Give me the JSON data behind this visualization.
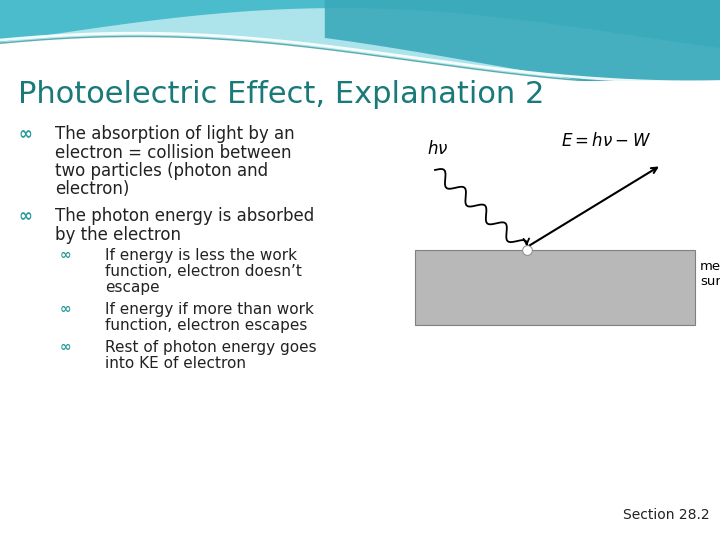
{
  "title": "Photoelectric Effect, Explanation 2",
  "title_color": "#1a7a7a",
  "title_fontsize": 22,
  "header_color1": "#4dbdcc",
  "header_color2": "#3aabb8",
  "bullet_color": "#2a9a9a",
  "text_color": "#222222",
  "bullet1_lines": [
    "The absorption of light by an",
    "electron = collision between",
    "two particles (photon and",
    "electron)"
  ],
  "bullet2_lines": [
    "The photon energy is absorbed",
    "by the electron"
  ],
  "sub_bullets": [
    [
      "If energy is less the work",
      "function, electron doesn’t",
      "escape"
    ],
    [
      "If energy if more than work",
      "function, electron escapes"
    ],
    [
      "Rest of photon energy goes",
      "into KE of electron"
    ]
  ],
  "section_label": "Section 28.2",
  "bg_color": "white"
}
